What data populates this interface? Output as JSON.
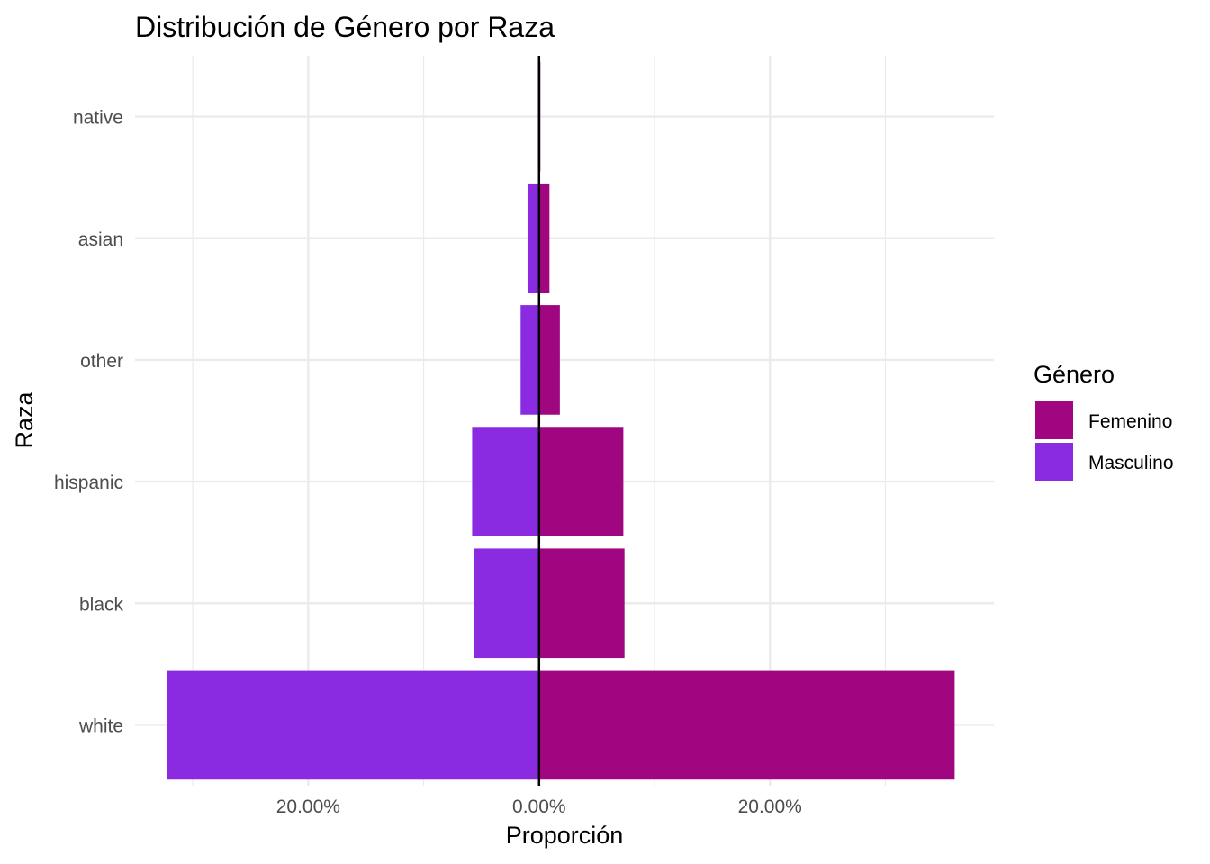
{
  "chart_data": {
    "type": "bar",
    "orientation": "horizontal-diverging",
    "title": "Distribución de Género por Raza",
    "xlabel": "Proporción",
    "ylabel": "Raza",
    "categories": [
      "white",
      "black",
      "hispanic",
      "other",
      "asian",
      "native"
    ],
    "series": [
      {
        "name": "Femenino",
        "color": "#A0067F",
        "values": [
          36.0,
          7.4,
          7.3,
          1.8,
          0.9,
          0.1
        ]
      },
      {
        "name": "Masculino",
        "color": "#8A2BE2",
        "values": [
          32.2,
          5.6,
          5.8,
          1.6,
          1.0,
          0.1
        ]
      }
    ],
    "xlim": [
      -35,
      39.4
    ],
    "x_ticks": [
      -20,
      0,
      20
    ],
    "x_tick_labels": [
      "20.00%",
      "0.00%",
      "20.00%"
    ],
    "masculino_side": "left",
    "zero_line": true,
    "grid": true,
    "legend": {
      "title": "Género",
      "position": "right",
      "entries": [
        "Femenino",
        "Masculino"
      ]
    }
  }
}
